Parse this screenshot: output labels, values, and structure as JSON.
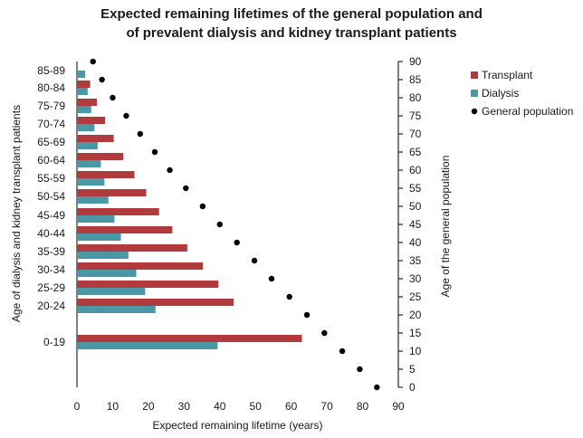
{
  "chart_data": {
    "type": "bar",
    "orientation": "horizontal",
    "title_line1": "Expected remaining lifetimes of the general population and",
    "title_line2": "of prevalent dialysis and kidney transplant patients",
    "xlabel": "Expected remaining lifetime (years)",
    "ylabel_left": "Age of dialysis  and  kidney transplant patients",
    "ylabel_right": "Age of the general population",
    "xlim": [
      0,
      90
    ],
    "x_ticks": [
      "0",
      "10",
      "20",
      "30",
      "40",
      "50",
      "60",
      "70",
      "80",
      "90"
    ],
    "right_ylim": [
      0,
      90
    ],
    "right_ticks": [
      "0",
      "5",
      "10",
      "15",
      "20",
      "25",
      "30",
      "35",
      "40",
      "45",
      "50",
      "55",
      "60",
      "65",
      "70",
      "75",
      "80",
      "85",
      "90"
    ],
    "categories": [
      "85-89",
      "80-84",
      "75-79",
      "70-74",
      "65-69",
      "60-64",
      "55-59",
      "50-54",
      "45-49",
      "40-44",
      "35-39",
      "30-34",
      "25-29",
      "20-24",
      "0-19"
    ],
    "series": [
      {
        "name": "Transplant",
        "color": "#b03a3c",
        "values": [
          null,
          3.7,
          5.6,
          7.9,
          10.3,
          13.0,
          16.1,
          19.4,
          23.0,
          26.7,
          30.9,
          35.3,
          39.6,
          43.9,
          63.0
        ]
      },
      {
        "name": "Dialysis",
        "color": "#4a97a6",
        "values": [
          2.3,
          3.0,
          4.0,
          4.9,
          5.8,
          6.7,
          7.7,
          8.8,
          10.5,
          12.3,
          14.4,
          16.6,
          19.1,
          22.0,
          39.4
        ]
      },
      {
        "name": "General population",
        "color": "#000000",
        "marker": "circle",
        "points": [
          {
            "x": 4.5,
            "y": 90
          },
          {
            "x": 7.0,
            "y": 85
          },
          {
            "x": 10.0,
            "y": 80
          },
          {
            "x": 13.8,
            "y": 75
          },
          {
            "x": 17.7,
            "y": 70
          },
          {
            "x": 21.8,
            "y": 65
          },
          {
            "x": 26.0,
            "y": 60
          },
          {
            "x": 30.5,
            "y": 55
          },
          {
            "x": 35.2,
            "y": 50
          },
          {
            "x": 40.0,
            "y": 45
          },
          {
            "x": 44.8,
            "y": 40
          },
          {
            "x": 49.7,
            "y": 35
          },
          {
            "x": 54.5,
            "y": 30
          },
          {
            "x": 59.5,
            "y": 25
          },
          {
            "x": 64.4,
            "y": 20
          },
          {
            "x": 69.3,
            "y": 15
          },
          {
            "x": 74.3,
            "y": 10
          },
          {
            "x": 79.2,
            "y": 5
          },
          {
            "x": 84.0,
            "y": 0
          }
        ]
      }
    ],
    "legend_position": "top-right",
    "grid": false
  }
}
